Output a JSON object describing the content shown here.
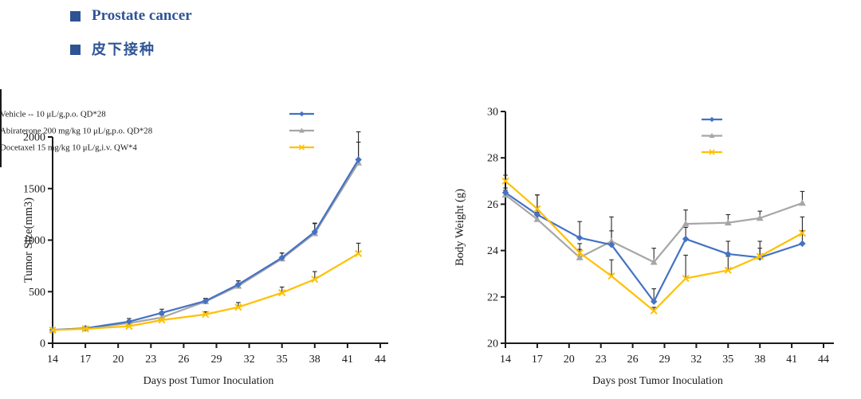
{
  "header": {
    "bullet_color": "#2E5394",
    "items": [
      {
        "label": "Prostate cancer"
      },
      {
        "label": "皮下接种"
      }
    ]
  },
  "colors": {
    "vehicle": "#4472C4",
    "abiraterone": "#A6A6A6",
    "docetaxel": "#FFC000",
    "error_bar": "#262626",
    "axis": "#1a1a1a",
    "text": "#1a1a1a"
  },
  "chart_data": [
    {
      "id": "tumor",
      "type": "line",
      "title": "",
      "xlabel": "Days post Tumor Inoculation",
      "ylabel": "Tumor Size(mm3)",
      "x": [
        14,
        17,
        21,
        24,
        28,
        31,
        35,
        38,
        42
      ],
      "xticks": [
        14,
        17,
        20,
        23,
        26,
        29,
        32,
        35,
        38,
        41,
        44
      ],
      "xlim": [
        14,
        44
      ],
      "ylim": [
        0,
        2000
      ],
      "yticks": [
        0,
        500,
        1000,
        1500,
        2000
      ],
      "grid": false,
      "legend_position": "top-right",
      "error_bar_direction": "up",
      "series": [
        {
          "name": "Vehicle -- 10 μL/g,p.o. QD*28",
          "color_key": "vehicle",
          "marker": "diamond",
          "values": [
            130,
            145,
            210,
            295,
            410,
            570,
            830,
            1080,
            1780
          ],
          "errors": [
            15,
            15,
            30,
            35,
            25,
            35,
            45,
            85,
            270
          ]
        },
        {
          "name": "Abiraterone 200 mg/kg 10 μL/g,p.o. QD*28",
          "color_key": "abiraterone",
          "marker": "triangle",
          "values": [
            130,
            145,
            195,
            250,
            405,
            555,
            820,
            1065,
            1750
          ],
          "errors": [
            15,
            15,
            25,
            25,
            30,
            50,
            55,
            95,
            200
          ]
        },
        {
          "name": "Docetaxel 15 mg/kg 10 μL/g,i.v. QW*4",
          "color_key": "docetaxel",
          "marker": "x",
          "values": [
            128,
            140,
            165,
            225,
            280,
            350,
            490,
            620,
            870
          ],
          "errors": [
            12,
            12,
            18,
            22,
            25,
            45,
            55,
            75,
            100
          ]
        }
      ]
    },
    {
      "id": "bodyweight",
      "type": "line",
      "title": "",
      "xlabel": "Days post Tumor Inoculation",
      "ylabel": "Body Weight (g)",
      "x": [
        14,
        17,
        21,
        24,
        28,
        31,
        35,
        38,
        42
      ],
      "xticks": [
        14,
        17,
        20,
        23,
        26,
        29,
        32,
        35,
        38,
        41,
        44
      ],
      "xlim": [
        14,
        44
      ],
      "ylim": [
        20,
        30
      ],
      "yticks": [
        20,
        22,
        24,
        26,
        28,
        30
      ],
      "grid": false,
      "legend_position": "top-right",
      "error_bar_direction": "up",
      "series": [
        {
          "name": "Vehicle -- 10 μL/g,p.o. QD*28",
          "color_key": "vehicle",
          "marker": "diamond",
          "values": [
            26.5,
            25.55,
            24.55,
            24.25,
            21.8,
            24.5,
            23.85,
            23.7,
            24.3
          ],
          "errors": [
            0.2,
            0.85,
            0.7,
            0.6,
            0.55,
            0.5,
            0.55,
            0.4,
            0.55
          ]
        },
        {
          "name": "Abiraterone 200 mg/kg 10 μL/g,p.o. QD*28",
          "color_key": "abiraterone",
          "marker": "triangle",
          "values": [
            26.4,
            25.35,
            23.7,
            24.4,
            23.5,
            25.15,
            25.2,
            25.4,
            26.05
          ],
          "errors": [
            0.2,
            0.3,
            0.35,
            1.05,
            0.6,
            0.6,
            0.35,
            0.3,
            0.5
          ]
        },
        {
          "name": "Docetaxel 15 mg/kg 10 μL/g,i.v. QW*4",
          "color_key": "docetaxel",
          "marker": "x",
          "values": [
            27.0,
            25.8,
            23.9,
            22.9,
            21.4,
            22.8,
            23.15,
            23.75,
            24.75
          ],
          "errors": [
            0.25,
            0.6,
            0.4,
            0.7,
            0.15,
            1.0,
            0.6,
            0.65,
            0.7
          ]
        }
      ]
    }
  ]
}
